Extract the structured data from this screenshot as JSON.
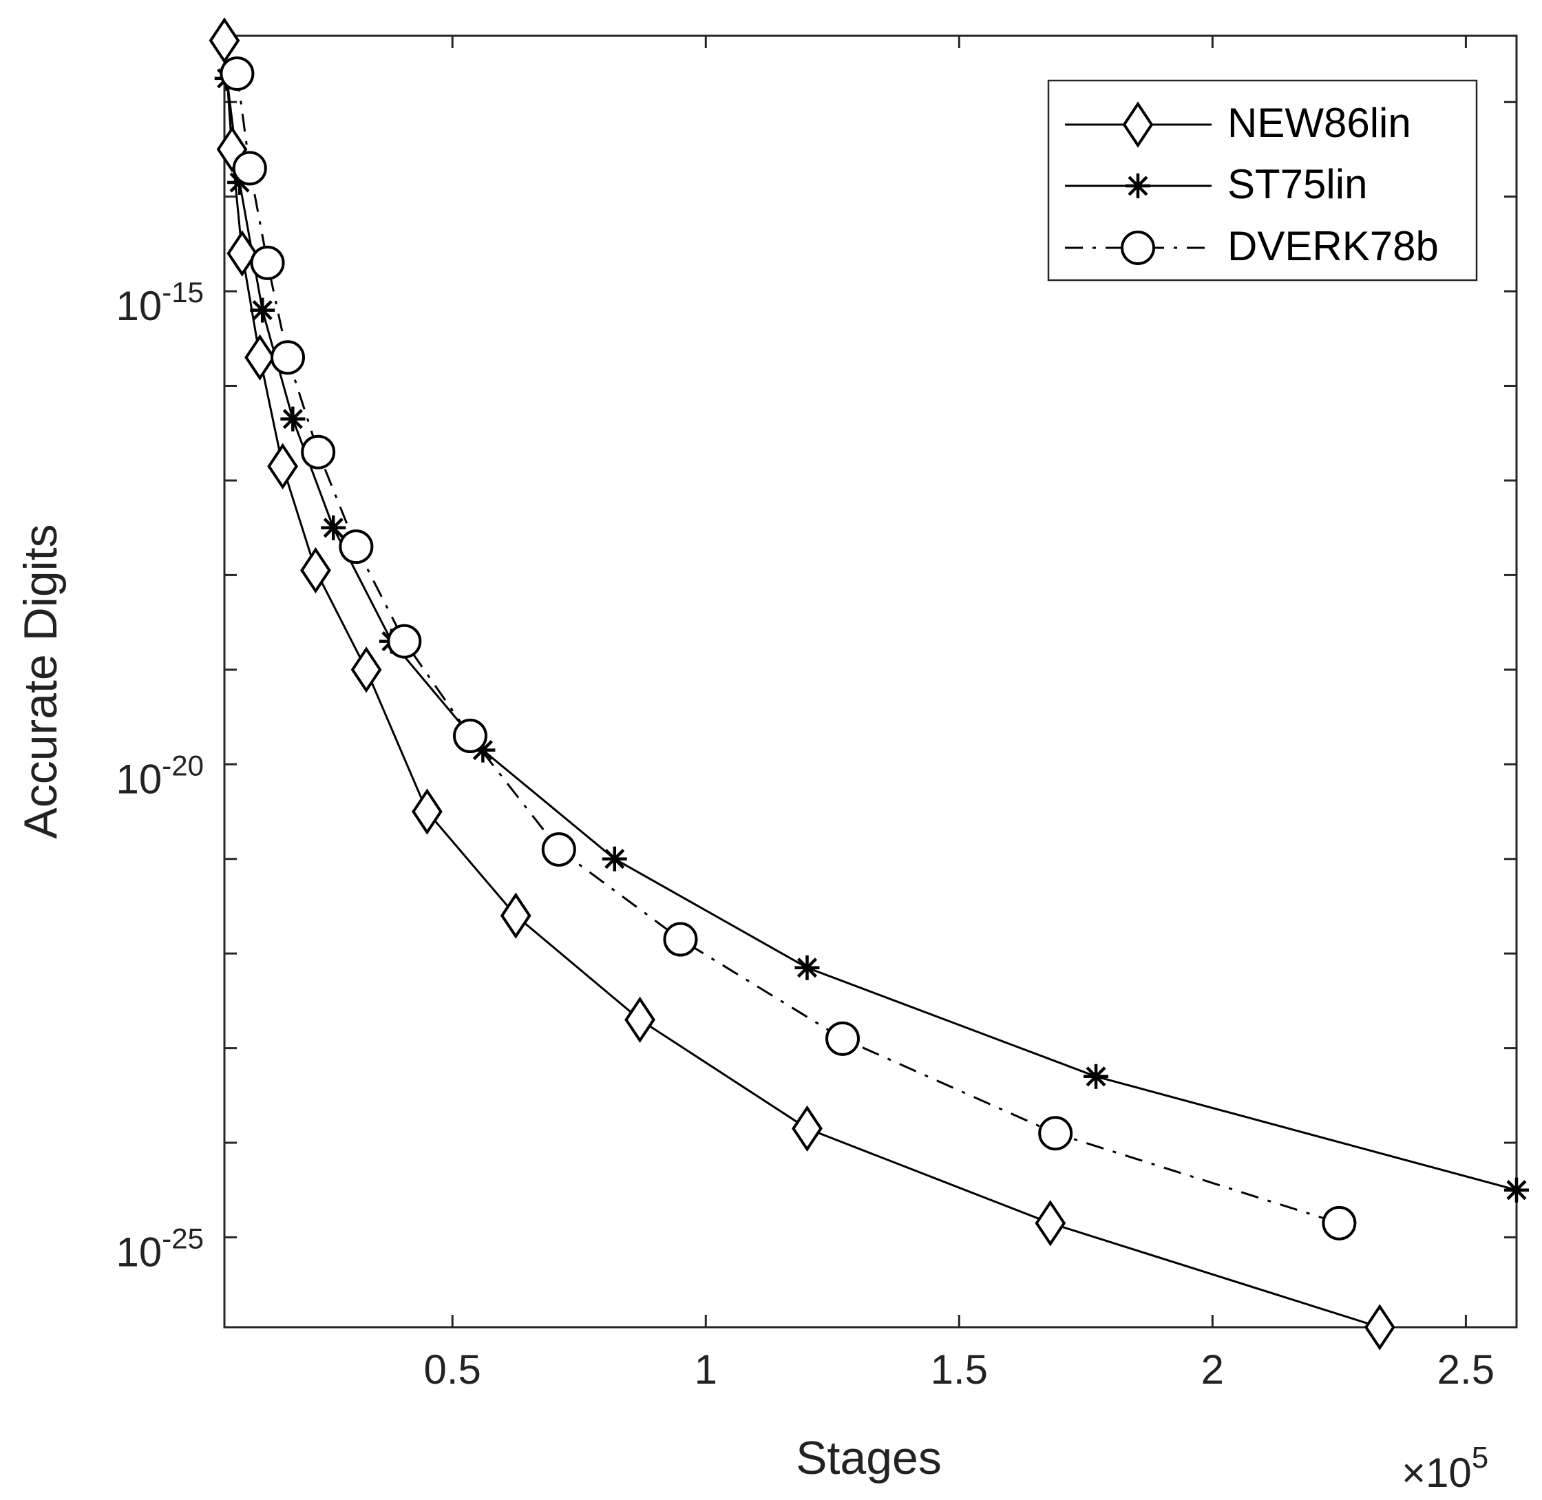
{
  "chart_data": {
    "type": "line",
    "title": "",
    "xlabel": "Stages",
    "ylabel": "Accurate Digits",
    "x_multiplier_label": "×10",
    "x_multiplier_exponent": "5",
    "xlim": [
      0.05,
      2.6
    ],
    "ylim_log10": [
      -25.95,
      -12.3
    ],
    "x_ticks": [
      0.5,
      1,
      1.5,
      2,
      2.5
    ],
    "x_tick_labels": [
      "0.5",
      "1",
      "1.5",
      "2",
      "2.5"
    ],
    "y_ticks_log10": [
      -15,
      -20,
      -25
    ],
    "y_tick_labels": [
      {
        "base": "10",
        "exp": "-15"
      },
      {
        "base": "10",
        "exp": "-20"
      },
      {
        "base": "10",
        "exp": "-25"
      }
    ],
    "y_minor_ticks_log10": [
      -13,
      -14,
      -15,
      -16,
      -17,
      -18,
      -19,
      -20,
      -21,
      -22,
      -23,
      -24,
      -25
    ],
    "legend_position": "top-right",
    "series": [
      {
        "name": "NEW86lin",
        "marker": "diamond",
        "line_style": "solid",
        "x": [
          0.05,
          0.065,
          0.085,
          0.12,
          0.165,
          0.23,
          0.33,
          0.45,
          0.625,
          0.87,
          1.2,
          1.68,
          2.33
        ],
        "y_log10": [
          -12.35,
          -13.5,
          -14.6,
          -15.7,
          -16.85,
          -17.95,
          -19.0,
          -20.5,
          -21.6,
          -22.7,
          -23.85,
          -24.85,
          -25.95
        ]
      },
      {
        "name": "ST75lin",
        "marker": "asterisk",
        "line_style": "solid",
        "x": [
          0.055,
          0.08,
          0.125,
          0.185,
          0.265,
          0.38,
          0.56,
          0.82,
          1.2,
          1.77,
          2.6
        ],
        "y_log10": [
          -12.75,
          -13.85,
          -15.2,
          -16.35,
          -17.5,
          -18.7,
          -19.85,
          -21.0,
          -22.15,
          -23.3,
          -24.5
        ]
      },
      {
        "name": "DVERK78b",
        "marker": "circle",
        "line_style": "dash-dot",
        "x": [
          0.075,
          0.1,
          0.135,
          0.175,
          0.235,
          0.31,
          0.405,
          0.535,
          0.71,
          0.95,
          1.27,
          1.69,
          2.25
        ],
        "y_log10": [
          -12.7,
          -13.7,
          -14.7,
          -15.7,
          -16.7,
          -17.7,
          -18.7,
          -19.7,
          -20.9,
          -21.85,
          -22.9,
          -23.9,
          -24.85
        ]
      }
    ]
  }
}
